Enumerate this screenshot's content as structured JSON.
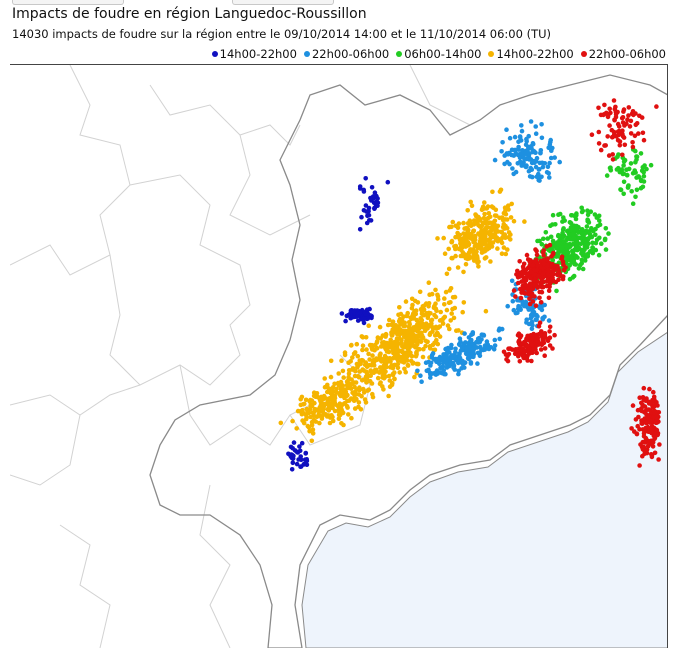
{
  "title": "Impacts de foudre en région Languedoc-Roussillon",
  "subtitle": "14030 impacts de foudre sur la région entre le 09/10/2014 14:00 et le 11/10/2014 06:00 (TU)",
  "legend": [
    {
      "label": "14h00-22h00",
      "color": "#1010c0"
    },
    {
      "label": "22h00-06h00",
      "color": "#1e90e0"
    },
    {
      "label": "06h00-14h00",
      "color": "#22cc22"
    },
    {
      "label": "14h00-22h00",
      "color": "#f5b400"
    },
    {
      "label": "22h00-06h00",
      "color": "#e01010"
    }
  ],
  "colors": {
    "sea": "#eef4fc",
    "border": "#8a8a8a",
    "region_border": "#d2d2d2",
    "shadow": "#bdbdbd"
  }
}
